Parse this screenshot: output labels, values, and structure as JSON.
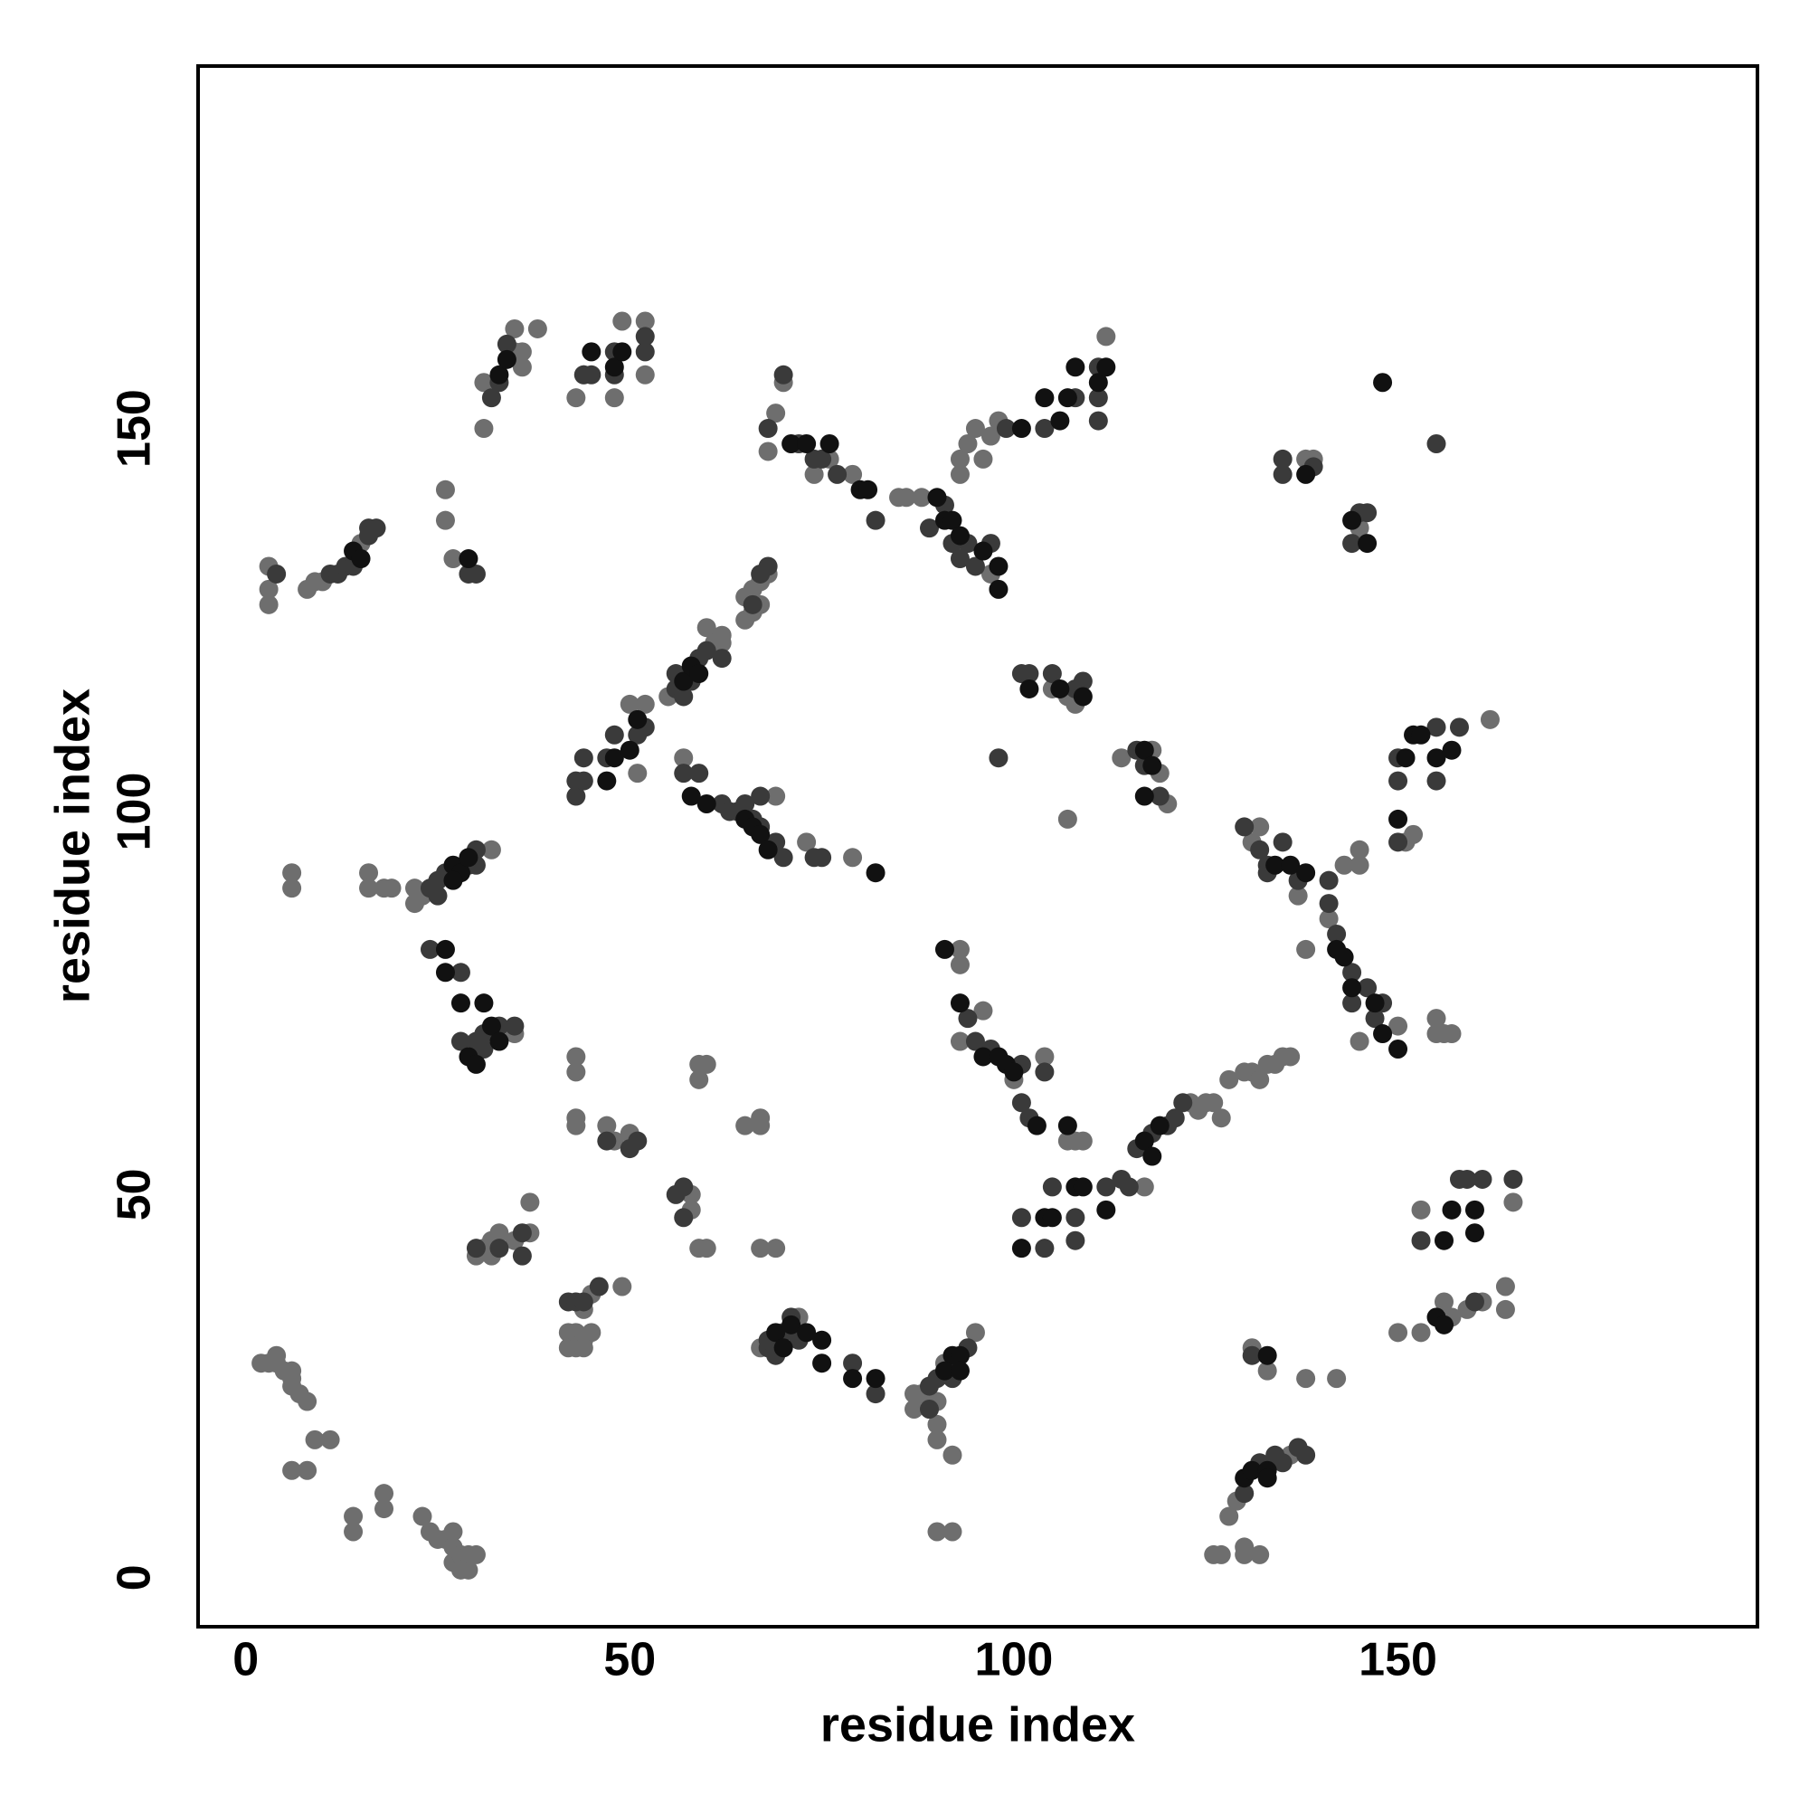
{
  "chart_data": {
    "type": "scatter",
    "x_label": "residue index",
    "y_label": "residue index",
    "xlim": [
      -6.2,
      196.8
    ],
    "ylim": [
      -6.4,
      197.3
    ],
    "xticks": [
      0,
      50,
      100,
      150
    ],
    "yticks": [
      0,
      50,
      100,
      150
    ],
    "grid": false,
    "series": [
      {
        "color": "#6e6e6e",
        "x": [
          2,
          3,
          4,
          4,
          5,
          6,
          6,
          7,
          6,
          8,
          6,
          8,
          9,
          11,
          14,
          14,
          18,
          18,
          23,
          24,
          25,
          26,
          27,
          27,
          27,
          28,
          29,
          29,
          30,
          28,
          3,
          3,
          3,
          8,
          9,
          10,
          15,
          26,
          26,
          27,
          31,
          31,
          35,
          35,
          36,
          36,
          38,
          43,
          44,
          48,
          49,
          52,
          52,
          50,
          51,
          52,
          55,
          60,
          61,
          62,
          62,
          65,
          65,
          66,
          67,
          68,
          66,
          67,
          57,
          69,
          73,
          79,
          6,
          6,
          16,
          16,
          18,
          19,
          22,
          22,
          23,
          32,
          35,
          30,
          31,
          32,
          32,
          33,
          35,
          37,
          37,
          42,
          43,
          44,
          45,
          42,
          43,
          44,
          44,
          45,
          49,
          43,
          43,
          43,
          43,
          47,
          48,
          50,
          58,
          58,
          59,
          60,
          59,
          60,
          59,
          65,
          67,
          67,
          67,
          69,
          67,
          72,
          87,
          87,
          88,
          89,
          90,
          91,
          95,
          90,
          90,
          92,
          90,
          92,
          109,
          108,
          107,
          117,
          123,
          124,
          125,
          126,
          127,
          128,
          130,
          131,
          132,
          133,
          134,
          135,
          136,
          93,
          93,
          93,
          96,
          100,
          104,
          126,
          127,
          130,
          130,
          132,
          128,
          129,
          131,
          133,
          136,
          138,
          142,
          150,
          153,
          156,
          157,
          159,
          161,
          164,
          164,
          153,
          165,
          131,
          132,
          137,
          138,
          141,
          143,
          145,
          145,
          145,
          150,
          151,
          152,
          162,
          155,
          156,
          155,
          157,
          105,
          107,
          108,
          107,
          114,
          118,
          119,
          120,
          138,
          139,
          145,
          69,
          70,
          74,
          76,
          79,
          85,
          86,
          88,
          97,
          93,
          93,
          94,
          95,
          96,
          97,
          98,
          112,
          68
        ],
        "values": [
          28,
          28,
          29,
          28,
          27,
          27,
          26,
          24,
          25,
          23,
          14,
          14,
          18,
          18,
          8,
          6,
          11,
          9,
          8,
          6,
          5,
          5,
          6,
          4,
          2,
          3,
          3,
          1,
          3,
          1,
          132,
          129,
          127,
          129,
          130,
          130,
          135,
          142,
          138,
          133,
          150,
          156,
          163,
          160,
          160,
          158,
          163,
          154,
          157,
          154,
          164,
          164,
          157,
          114,
          105,
          114,
          115,
          124,
          122,
          122,
          123,
          125,
          128,
          129,
          130,
          131,
          126,
          127,
          107,
          102,
          96,
          94,
          92,
          90,
          92,
          90,
          90,
          90,
          90,
          88,
          89,
          95,
          71,
          42,
          43,
          44,
          42,
          45,
          44,
          49,
          45,
          32,
          32,
          31,
          32,
          30,
          30,
          30,
          35,
          37,
          38,
          60,
          59,
          68,
          66,
          59,
          57,
          58,
          50,
          48,
          43,
          43,
          65,
          67,
          67,
          59,
          60,
          59,
          43,
          43,
          30,
          34,
          24,
          22,
          24,
          22,
          23,
          28,
          32,
          20,
          18,
          16,
          6,
          6,
          57,
          57,
          57,
          51,
          62,
          61,
          62,
          62,
          60,
          65,
          66,
          66,
          65,
          67,
          67,
          68,
          68,
          82,
          80,
          70,
          74,
          65,
          68,
          3,
          3,
          3,
          4,
          3,
          8,
          10,
          30,
          27,
          16,
          26,
          26,
          32,
          32,
          36,
          34,
          35,
          36,
          38,
          35,
          48,
          49,
          96,
          98,
          89,
          82,
          86,
          93,
          93,
          95,
          70,
          72,
          96,
          97,
          112,
          71,
          71,
          73,
          71,
          116,
          115,
          114,
          99,
          107,
          108,
          105,
          101,
          146,
          146,
          137,
          152,
          156,
          144,
          146,
          144,
          141,
          141,
          141,
          131,
          144,
          146,
          148,
          150,
          146,
          149,
          151,
          162,
          147
        ]
      },
      {
        "color": "#3a3a3a",
        "x": [
          4,
          11,
          12,
          13,
          14,
          16,
          16,
          17,
          29,
          30,
          32,
          33,
          34,
          44,
          45,
          48,
          48,
          52,
          52,
          43,
          43,
          44,
          44,
          47,
          48,
          51,
          52,
          56,
          56,
          57,
          58,
          59,
          60,
          62,
          66,
          67,
          68,
          57,
          59,
          62,
          63,
          64,
          65,
          66,
          67,
          67,
          69,
          70,
          74,
          75,
          24,
          25,
          25,
          26,
          29,
          30,
          30,
          24,
          28,
          28,
          30,
          31,
          31,
          33,
          35,
          30,
          33,
          36,
          36,
          42,
          43,
          44,
          46,
          47,
          51,
          50,
          57,
          57,
          56,
          68,
          68,
          69,
          70,
          71,
          72,
          79,
          82,
          89,
          90,
          92,
          94,
          89,
          101,
          104,
          105,
          108,
          108,
          112,
          114,
          115,
          116,
          118,
          120,
          121,
          122,
          94,
          95,
          97,
          101,
          101,
          102,
          104,
          130,
          131,
          132,
          134,
          135,
          137,
          138,
          153,
          158,
          159,
          161,
          165,
          160,
          130,
          132,
          133,
          133,
          135,
          137,
          141,
          141,
          142,
          144,
          144,
          146,
          148,
          147,
          150,
          150,
          150,
          155,
          155,
          158,
          101,
          102,
          105,
          108,
          109,
          116,
          117,
          119,
          135,
          135,
          139,
          144,
          145,
          146,
          155,
          68,
          70,
          72,
          74,
          75,
          77,
          82,
          89,
          91,
          92,
          93,
          94,
          97,
          95,
          99,
          104,
          108,
          111,
          111,
          111,
          98
        ],
        "values": [
          131,
          131,
          131,
          132,
          132,
          137,
          136,
          137,
          131,
          131,
          154,
          156,
          161,
          157,
          157,
          157,
          160,
          160,
          162,
          102,
          104,
          104,
          107,
          107,
          110,
          110,
          111,
          116,
          118,
          115,
          117,
          120,
          121,
          120,
          127,
          131,
          132,
          105,
          105,
          101,
          100,
          100,
          101,
          99,
          98,
          102,
          96,
          94,
          94,
          94,
          90,
          91,
          89,
          92,
          93,
          95,
          93,
          82,
          79,
          70,
          70,
          71,
          69,
          72,
          72,
          43,
          43,
          42,
          45,
          36,
          36,
          36,
          38,
          57,
          57,
          56,
          51,
          47,
          50,
          30,
          31,
          29,
          32,
          34,
          31,
          28,
          24,
          25,
          26,
          26,
          30,
          22,
          47,
          43,
          51,
          47,
          44,
          51,
          52,
          51,
          56,
          58,
          59,
          60,
          62,
          73,
          70,
          69,
          67,
          62,
          60,
          66,
          11,
          29,
          15,
          16,
          15,
          17,
          16,
          44,
          52,
          52,
          52,
          52,
          36,
          98,
          95,
          93,
          92,
          96,
          91,
          91,
          88,
          84,
          79,
          75,
          77,
          75,
          73,
          96,
          104,
          107,
          104,
          111,
          111,
          118,
          118,
          118,
          116,
          117,
          108,
          106,
          102,
          146,
          144,
          145,
          135,
          139,
          139,
          148,
          150,
          157,
          148,
          146,
          146,
          144,
          138,
          137,
          140,
          135,
          133,
          135,
          135,
          132,
          150,
          150,
          154,
          154,
          158,
          151,
          107
        ]
      },
      {
        "color": "#111111",
        "x": [
          26,
          26,
          28,
          31,
          29,
          30,
          32,
          33,
          27,
          28,
          29,
          27,
          14,
          15,
          29,
          33,
          34,
          45,
          48,
          49,
          47,
          48,
          50,
          51,
          57,
          58,
          59,
          58,
          60,
          65,
          66,
          67,
          68,
          82,
          69,
          70,
          71,
          73,
          75,
          75,
          79,
          82,
          92,
          93,
          91,
          93,
          101,
          104,
          105,
          108,
          109,
          112,
          117,
          118,
          119,
          91,
          93,
          96,
          98,
          99,
          100,
          103,
          107,
          130,
          131,
          133,
          133,
          133,
          155,
          156,
          157,
          156,
          160,
          160,
          134,
          136,
          138,
          142,
          143,
          144,
          147,
          148,
          150,
          150,
          151,
          152,
          153,
          155,
          157,
          102,
          106,
          109,
          117,
          118,
          117,
          138,
          144,
          146,
          71,
          73,
          76,
          80,
          81,
          90,
          91,
          92,
          93,
          96,
          98,
          98,
          101,
          104,
          106,
          107,
          108,
          111,
          112,
          148
        ],
        "values": [
          82,
          79,
          75,
          75,
          68,
          67,
          72,
          70,
          93,
          92,
          94,
          91,
          134,
          133,
          133,
          157,
          159,
          160,
          158,
          160,
          104,
          107,
          108,
          112,
          117,
          119,
          118,
          102,
          101,
          99,
          98,
          97,
          95,
          92,
          32,
          30,
          33,
          32,
          31,
          28,
          26,
          26,
          29,
          29,
          27,
          27,
          43,
          47,
          47,
          51,
          51,
          48,
          57,
          55,
          59,
          82,
          75,
          68,
          68,
          67,
          66,
          59,
          59,
          13,
          14,
          14,
          13,
          29,
          34,
          33,
          48,
          44,
          48,
          45,
          93,
          93,
          92,
          82,
          81,
          77,
          75,
          71,
          69,
          99,
          107,
          110,
          110,
          107,
          108,
          116,
          116,
          115,
          108,
          106,
          102,
          144,
          138,
          135,
          148,
          148,
          148,
          142,
          142,
          141,
          138,
          138,
          136,
          134,
          132,
          129,
          150,
          154,
          151,
          154,
          158,
          156,
          158,
          156
        ]
      }
    ]
  }
}
